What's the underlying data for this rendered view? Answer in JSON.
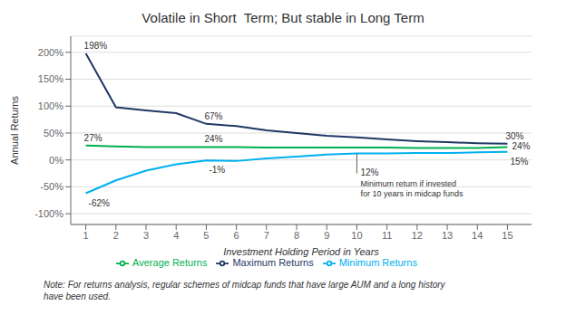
{
  "chart_data": {
    "type": "line",
    "title": "Volatile in Short  Term; But stable in Long Term",
    "x_label": "Investment Holding Period in Years",
    "y_label": "Annual Returns",
    "x": [
      1,
      2,
      3,
      4,
      5,
      6,
      7,
      8,
      9,
      10,
      11,
      12,
      13,
      14,
      15
    ],
    "series": [
      {
        "name": "Maximum Returns",
        "color": "#1F3864",
        "values": [
          198,
          98,
          92,
          87,
          67,
          63,
          55,
          50,
          45,
          42,
          38,
          35,
          33,
          31,
          30
        ],
        "value_labels": [
          "198%",
          null,
          null,
          null,
          "67%",
          null,
          null,
          null,
          null,
          null,
          null,
          null,
          null,
          null,
          "30%"
        ]
      },
      {
        "name": "Minimum Returns",
        "color": "#00B0F0",
        "values": [
          -62,
          -38,
          -20,
          -8,
          -1,
          -2,
          3,
          6,
          10,
          12,
          12,
          13,
          13,
          14,
          15
        ],
        "value_labels": [
          "-62%",
          null,
          null,
          null,
          "-1%",
          null,
          null,
          null,
          null,
          "12%",
          null,
          null,
          null,
          null,
          "15%"
        ]
      },
      {
        "name": "Average Returns",
        "color": "#00B050",
        "values": [
          27,
          25,
          24,
          24,
          24,
          24,
          23,
          23,
          23,
          23,
          23,
          22,
          22,
          22,
          24
        ],
        "value_labels": [
          "27%",
          null,
          null,
          null,
          "24%",
          null,
          null,
          null,
          null,
          null,
          null,
          null,
          null,
          null,
          "24%"
        ]
      }
    ],
    "xlim": [
      0.5,
      15.8
    ],
    "xticks": [
      1,
      2,
      3,
      4,
      5,
      6,
      7,
      8,
      9,
      10,
      11,
      12,
      13,
      14,
      15
    ],
    "ylim": [
      -120,
      230
    ],
    "yticks": [
      {
        "value": -100,
        "label": "-100%"
      },
      {
        "value": -50,
        "label": "-50%"
      },
      {
        "value": 0,
        "label": "0%"
      },
      {
        "value": 50,
        "label": "50%"
      },
      {
        "value": 100,
        "label": "100%"
      },
      {
        "value": 150,
        "label": "150%"
      },
      {
        "value": 200,
        "label": "200%"
      }
    ],
    "grid": true,
    "legend": "bottom",
    "annotations": [
      {
        "text": "Minimum return if invested\nfor 10 years in midcap funds",
        "x": 10,
        "y": 12
      }
    ],
    "note": "Note: For returns analysis, regular schemes of midcap funds that have large AUM and a long history\nhave been used."
  }
}
